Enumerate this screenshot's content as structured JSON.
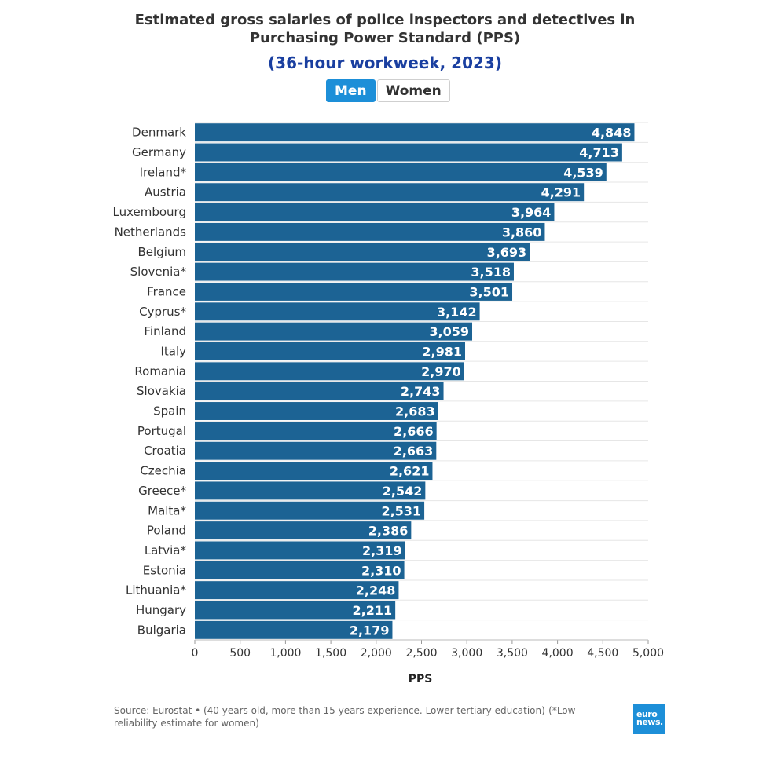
{
  "chart_data": {
    "type": "bar",
    "orientation": "horizontal",
    "title": "Estimated gross salaries of police inspectors and detectives in Purchasing Power Standard (PPS)",
    "subtitle": "(36-hour workweek, 2023)",
    "xlabel": "PPS",
    "ylabel": "",
    "xlim": [
      0,
      5000
    ],
    "xticks": [
      0,
      500,
      1000,
      1500,
      2000,
      2500,
      3000,
      3500,
      4000,
      4500,
      5000
    ],
    "xtick_labels": [
      "0",
      "500",
      "1,000",
      "1,500",
      "2,000",
      "2,500",
      "3,000",
      "3,500",
      "4,000",
      "4,500",
      "5,000"
    ],
    "grid": true,
    "bar_color": "#1c6394",
    "categories": [
      "Denmark",
      "Germany",
      "Ireland*",
      "Austria",
      "Luxembourg",
      "Netherlands",
      "Belgium",
      "Slovenia*",
      "France",
      "Cyprus*",
      "Finland",
      "Italy",
      "Romania",
      "Slovakia",
      "Spain",
      "Portugal",
      "Croatia",
      "Czechia",
      "Greece*",
      "Malta*",
      "Poland",
      "Latvia*",
      "Estonia",
      "Lithuania*",
      "Hungary",
      "Bulgaria"
    ],
    "values": [
      4848,
      4713,
      4539,
      4291,
      3964,
      3860,
      3693,
      3518,
      3501,
      3142,
      3059,
      2981,
      2970,
      2743,
      2683,
      2666,
      2663,
      2621,
      2542,
      2531,
      2386,
      2319,
      2310,
      2248,
      2211,
      2179
    ],
    "value_labels": [
      "4,848",
      "4,713",
      "4,539",
      "4,291",
      "3,964",
      "3,860",
      "3,693",
      "3,518",
      "3,501",
      "3,142",
      "3,059",
      "2,981",
      "2,970",
      "2,743",
      "2,683",
      "2,666",
      "2,663",
      "2,621",
      "2,542",
      "2,531",
      "2,386",
      "2,319",
      "2,310",
      "2,248",
      "2,211",
      "2,179"
    ]
  },
  "toggle": {
    "men_label": "Men",
    "women_label": "Women",
    "active": "Men"
  },
  "source": "Source: Eurostat • (40 years old, more than 15 years experience. Lower tertiary education)-(*Low reliability estimate for women)",
  "logo": {
    "line1": "euro",
    "line2": "news."
  }
}
